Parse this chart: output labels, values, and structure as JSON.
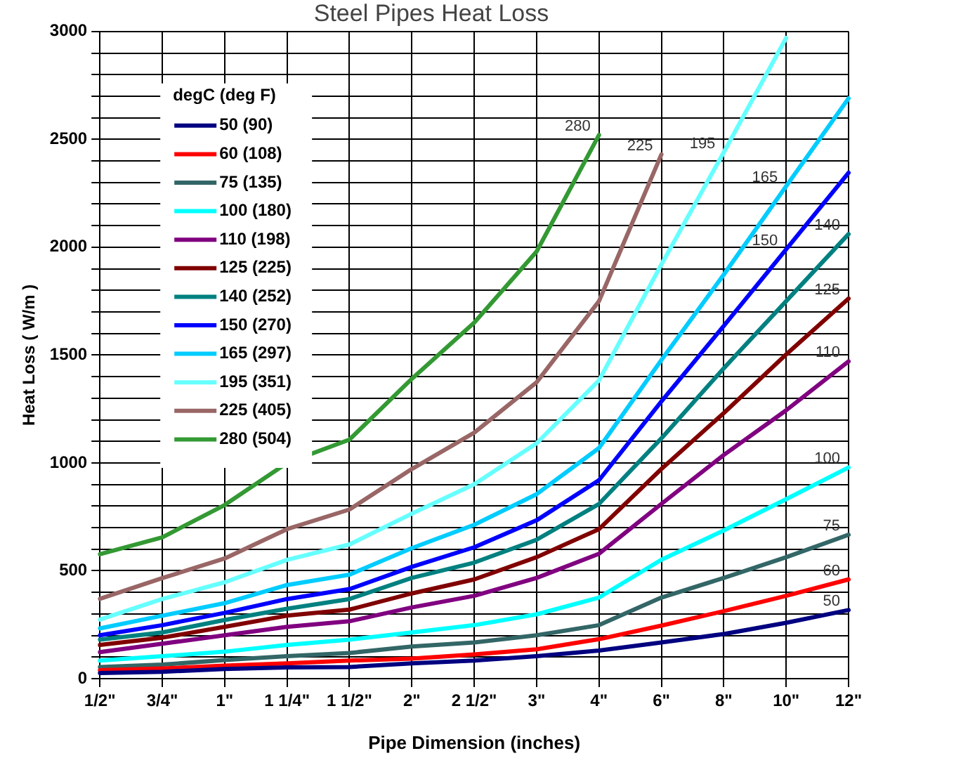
{
  "chart_data": {
    "type": "line",
    "title": "Steel Pipes Heat Loss",
    "xlabel": "Pipe Dimension (inches)",
    "ylabel": "Heat Loss ( W/m )",
    "legend_title": "degC (deg F)",
    "legend": "top left",
    "grid": true,
    "marker": "none",
    "line_style": "solid",
    "categories": [
      "1/2\"",
      "3/4\"",
      "1\"",
      "1 1/4\"",
      "1 1/2\"",
      "2\"",
      "2 1/2\"",
      "3\"",
      "4\"",
      "6\"",
      "8\"",
      "10\"",
      "12\""
    ],
    "ylim": [
      0,
      3000
    ],
    "yticks": [
      0,
      {
        "value": 100,
        "label": null
      },
      {
        "value": 200,
        "label": null
      },
      {
        "value": 300,
        "label": null
      },
      {
        "value": 400,
        "label": null
      },
      500,
      {
        "value": 600,
        "label": null
      },
      {
        "value": 700,
        "label": null
      },
      {
        "value": 800,
        "label": null
      },
      {
        "value": 900,
        "label": null
      },
      1000,
      {
        "value": 1100,
        "label": null
      },
      {
        "value": 1200,
        "label": null
      },
      {
        "value": 1300,
        "label": null
      },
      {
        "value": 1400,
        "label": null
      },
      1500,
      {
        "value": 1600,
        "label": null
      },
      {
        "value": 1700,
        "label": null
      },
      {
        "value": 1800,
        "label": null
      },
      {
        "value": 1900,
        "label": null
      },
      2000,
      {
        "value": 2100,
        "label": null
      },
      {
        "value": 2200,
        "label": null
      },
      {
        "value": 2300,
        "label": null
      },
      {
        "value": 2400,
        "label": null
      },
      2500,
      {
        "value": 2600,
        "label": null
      },
      {
        "value": 2700,
        "label": null
      },
      {
        "value": 2800,
        "label": null
      },
      {
        "value": 2900,
        "label": null
      },
      3000
    ],
    "series": [
      {
        "name": "50 (90)",
        "color": "#000080",
        "values": [
          26,
          32,
          45,
          52,
          54,
          71,
          84,
          104,
          130,
          168,
          207,
          259,
          318
        ]
      },
      {
        "name": "60 (108)",
        "color": "#ff0000",
        "values": [
          39,
          47,
          60,
          71,
          84,
          93,
          112,
          136,
          183,
          246,
          313,
          384,
          460
        ]
      },
      {
        "name": "75 (135)",
        "color": "#336666",
        "values": [
          54,
          65,
          86,
          104,
          119,
          149,
          168,
          201,
          248,
          376,
          467,
          563,
          667
        ]
      },
      {
        "name": "100 (180)",
        "color": "#00ffff",
        "values": [
          84,
          104,
          125,
          156,
          181,
          214,
          248,
          298,
          376,
          551,
          687,
          832,
          979
        ]
      },
      {
        "name": "110 (198)",
        "color": "#800080",
        "values": [
          123,
          162,
          201,
          240,
          266,
          330,
          384,
          467,
          579,
          810,
          1037,
          1244,
          1471
        ]
      },
      {
        "name": "125 (225)",
        "color": "#800000",
        "values": [
          156,
          190,
          240,
          292,
          320,
          395,
          460,
          563,
          693,
          972,
          1231,
          1503,
          1762
        ]
      },
      {
        "name": "140 (252)",
        "color": "#008080",
        "values": [
          181,
          214,
          272,
          324,
          369,
          467,
          538,
          644,
          810,
          1114,
          1439,
          1750,
          2061
        ]
      },
      {
        "name": "150 (270)",
        "color": "#0000ff",
        "values": [
          201,
          248,
          305,
          369,
          415,
          518,
          609,
          734,
          920,
          1285,
          1635,
          1990,
          2345
        ]
      },
      {
        "name": "165 (297)",
        "color": "#00ccff",
        "values": [
          233,
          292,
          350,
          434,
          482,
          605,
          713,
          855,
          1069,
          1477,
          1873,
          2283,
          2690
        ]
      },
      {
        "name": "195 (351)",
        "color": "#66ffff",
        "values": [
          274,
          369,
          447,
          551,
          622,
          765,
          901,
          1091,
          1383,
          1920,
          2440,
          2970,
          null
        ]
      },
      {
        "name": "225 (405)",
        "color": "#996666",
        "values": [
          370,
          466,
          557,
          693,
          784,
          972,
          1140,
          1374,
          1750,
          2430,
          null,
          null,
          null
        ]
      },
      {
        "name": "280 (504)",
        "color": "#339933",
        "values": [
          577,
          655,
          805,
          1000,
          1108,
          1390,
          1650,
          1980,
          2520,
          null,
          null,
          null,
          null
        ]
      }
    ],
    "annotations": [
      {
        "text": "280",
        "x": "4\"",
        "y": 2520
      },
      {
        "text": "225",
        "x": "6\"",
        "y": 2430
      },
      {
        "text": "195",
        "x": "8\"",
        "y": 2440
      },
      {
        "text": "165",
        "x": "10\"",
        "y": 2283
      },
      {
        "text": "150",
        "x": "10\"",
        "y": 1990
      },
      {
        "text": "140",
        "x": "12\"",
        "y": 2061
      },
      {
        "text": "125",
        "x": "12\"",
        "y": 1762
      },
      {
        "text": "110",
        "x": "12\"",
        "y": 1471
      },
      {
        "text": "100",
        "x": "12\"",
        "y": 979
      },
      {
        "text": "75",
        "x": "12\"",
        "y": 667
      },
      {
        "text": "60",
        "x": "12\"",
        "y": 460
      },
      {
        "text": "50",
        "x": "12\"",
        "y": 318
      }
    ]
  }
}
